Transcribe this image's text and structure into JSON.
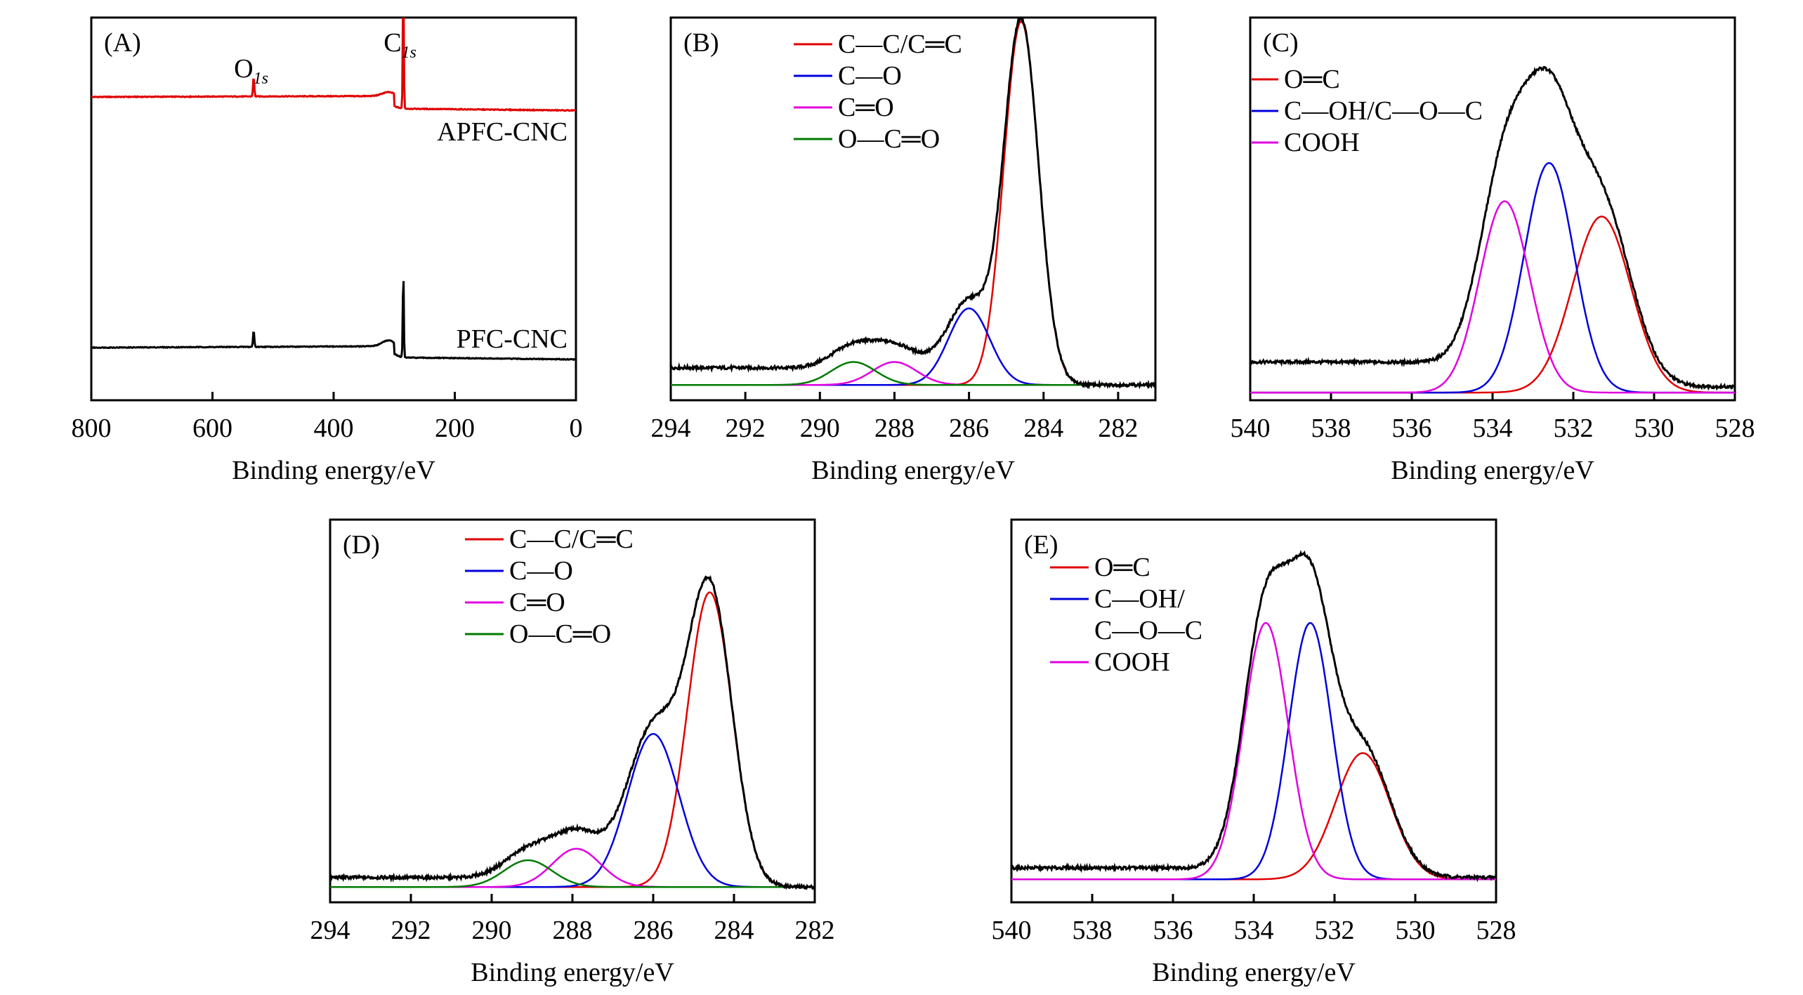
{
  "figure": {
    "colors": {
      "envelope": "#000000",
      "red": "#e00000",
      "blue": "#0000dd",
      "magenta": "#e000e0",
      "green": "#007a00"
    }
  },
  "chart_data": [
    {
      "id": "A",
      "type": "line",
      "panel_label": "(A)",
      "xlabel": "Binding energy/eV",
      "ylabel": "",
      "xlim": [
        800,
        0
      ],
      "xticks": [
        800,
        600,
        400,
        200,
        0
      ],
      "xtick_labels": [
        "800",
        "600",
        "400",
        "200",
        "0"
      ],
      "peak_labels": [
        {
          "main": "O",
          "sub": "1s",
          "x": 532
        },
        {
          "main": "C",
          "sub": "1s",
          "x": 285
        }
      ],
      "series": [
        {
          "name": "APFC-CNC",
          "color": "#e00000",
          "offset": 0.75,
          "base_start": 0.085,
          "base_end": 0.095,
          "shoulder": {
            "x": 300,
            "width": 25,
            "height": 0.02
          },
          "peaks": [
            {
              "x": 285,
              "height": 0.67,
              "width": 2.0
            },
            {
              "x": 532,
              "height": 0.1,
              "width": 2.5
            }
          ]
        },
        {
          "name": "PFC-CNC",
          "color": "#000000",
          "offset": 0.1,
          "base_start": 0.075,
          "base_end": 0.09,
          "shoulder": {
            "x": 300,
            "width": 25,
            "height": 0.03
          },
          "peaks": [
            {
              "x": 285,
              "height": 0.45,
              "width": 2.0
            },
            {
              "x": 532,
              "height": 0.085,
              "width": 2.5
            }
          ]
        }
      ]
    },
    {
      "id": "B",
      "type": "line",
      "panel_label": "(B)",
      "xlabel": "Binding energy/eV",
      "xlim": [
        294,
        281
      ],
      "ylim": [
        0,
        1.0
      ],
      "xticks": [
        294,
        292,
        290,
        288,
        286,
        284,
        282
      ],
      "xtick_labels": [
        "294",
        "292",
        "290",
        "288",
        "286",
        "284",
        "282"
      ],
      "baseline": 0.04,
      "envelope_bg": {
        "left": 0.045,
        "mid_x": 287.0,
        "mid_height": 0.025,
        "mid_width": 1.8
      },
      "components": [
        {
          "name": "C—C/C═C",
          "color": "#e00000",
          "center": 284.6,
          "height": 0.95,
          "fwhm": 1.1
        },
        {
          "name": "C—O",
          "color": "#0000dd",
          "center": 286.0,
          "height": 0.2,
          "fwhm": 1.3
        },
        {
          "name": "C═O",
          "color": "#e000e0",
          "center": 288.0,
          "height": 0.06,
          "fwhm": 1.4
        },
        {
          "name": "O—C═O",
          "color": "#007a00",
          "center": 289.1,
          "height": 0.06,
          "fwhm": 1.4
        }
      ]
    },
    {
      "id": "C",
      "type": "line",
      "panel_label": "(C)",
      "xlabel": "Binding energy/eV",
      "xlim": [
        540,
        528
      ],
      "ylim": [
        0,
        1.0
      ],
      "xticks": [
        540,
        538,
        536,
        534,
        532,
        530,
        528
      ],
      "xtick_labels": [
        "540",
        "538",
        "536",
        "534",
        "532",
        "530",
        "528"
      ],
      "baseline": 0.02,
      "envelope_bg": {
        "left": 0.08,
        "right": 0.015
      },
      "components": [
        {
          "name": "O═C",
          "color": "#e00000",
          "center": 531.3,
          "height": 0.46,
          "fwhm": 1.7
        },
        {
          "name": "C—OH/C—O—C",
          "color": "#0000dd",
          "center": 532.6,
          "height": 0.6,
          "fwhm": 1.45
        },
        {
          "name": "COOH",
          "color": "#e000e0",
          "center": 533.7,
          "height": 0.5,
          "fwhm": 1.45
        }
      ]
    },
    {
      "id": "D",
      "type": "line",
      "panel_label": "(D)",
      "xlabel": "Binding energy/eV",
      "xlim": [
        294,
        282
      ],
      "ylim": [
        0,
        1.0
      ],
      "xticks": [
        294,
        292,
        290,
        288,
        286,
        284,
        282
      ],
      "xtick_labels": [
        "294",
        "292",
        "290",
        "288",
        "286",
        "284",
        "282"
      ],
      "baseline": 0.04,
      "envelope_bg": {
        "left": 0.025,
        "mid_x": 287.5,
        "mid_height": 0.03,
        "mid_width": 2.0
      },
      "components": [
        {
          "name": "C—C/C═C",
          "color": "#e00000",
          "center": 284.6,
          "height": 0.77,
          "fwhm": 1.3
        },
        {
          "name": "C—O",
          "color": "#0000dd",
          "center": 286.0,
          "height": 0.4,
          "fwhm": 1.5
        },
        {
          "name": "C═O",
          "color": "#e000e0",
          "center": 287.9,
          "height": 0.1,
          "fwhm": 1.4
        },
        {
          "name": "O—C═O",
          "color": "#007a00",
          "center": 289.1,
          "height": 0.07,
          "fwhm": 1.4
        }
      ]
    },
    {
      "id": "E",
      "type": "line",
      "panel_label": "(E)",
      "xlabel": "Binding energy/eV",
      "xlim": [
        540,
        528
      ],
      "ylim": [
        0,
        1.0
      ],
      "xticks": [
        540,
        538,
        536,
        534,
        532,
        530,
        528
      ],
      "xtick_labels": [
        "540",
        "538",
        "536",
        "534",
        "532",
        "530",
        "528"
      ],
      "baseline": 0.06,
      "envelope_bg": {
        "left": 0.03,
        "right": 0.005
      },
      "components": [
        {
          "name": "O═C",
          "color": "#e00000",
          "center": 531.3,
          "height": 0.33,
          "fwhm": 1.6
        },
        {
          "name": "C—OH/",
          "name_line2": "C—O—C",
          "color": "#0000dd",
          "center": 532.6,
          "height": 0.67,
          "fwhm": 1.25
        },
        {
          "name": "COOH",
          "color": "#e000e0",
          "center": 533.7,
          "height": 0.67,
          "fwhm": 1.3
        }
      ]
    }
  ]
}
